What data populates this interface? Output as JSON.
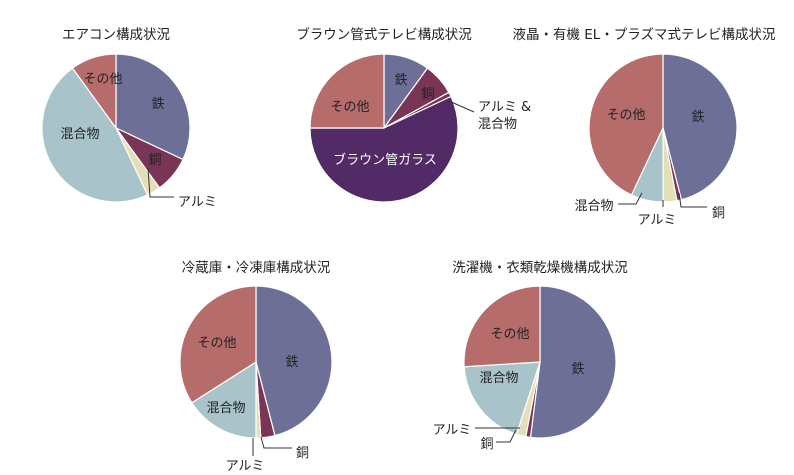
{
  "colors": {
    "iron": "#6e6f96",
    "copper": "#7a3456",
    "aluminum": "#e4dfb6",
    "mixed": "#a8c3c9",
    "other": "#b76c6c",
    "glass": "#512a66",
    "alumix": "#7a3456"
  },
  "chart_data": [
    {
      "type": "pie",
      "title": "エアコン構成状況",
      "slices": [
        {
          "key": "iron",
          "label": "鉄",
          "value": 32
        },
        {
          "key": "copper",
          "label": "銅",
          "value": 8
        },
        {
          "key": "aluminum",
          "label": "アルミ",
          "value": 3
        },
        {
          "key": "mixed",
          "label": "混合物",
          "value": 47
        },
        {
          "key": "other",
          "label": "その他",
          "value": 10
        }
      ]
    },
    {
      "type": "pie",
      "title": "ブラウン管式テレビ構成状況",
      "slices": [
        {
          "key": "iron",
          "label": "鉄",
          "value": 10
        },
        {
          "key": "copper",
          "label": "銅",
          "value": 7
        },
        {
          "key": "alumix",
          "label": "アルミ &\n混合物",
          "value": 1
        },
        {
          "key": "glass",
          "label": "ブラウン管ガラス",
          "value": 57
        },
        {
          "key": "other",
          "label": "その他",
          "value": 25
        }
      ]
    },
    {
      "type": "pie",
      "title": "液晶・有機 EL・プラズマ式テレビ構成状況",
      "slices": [
        {
          "key": "iron",
          "label": "鉄",
          "value": 46
        },
        {
          "key": "copper",
          "label": "銅",
          "value": 1
        },
        {
          "key": "aluminum",
          "label": "アルミ",
          "value": 3
        },
        {
          "key": "mixed",
          "label": "混合物",
          "value": 7
        },
        {
          "key": "other",
          "label": "その他",
          "value": 43
        }
      ]
    },
    {
      "type": "pie",
      "title": "冷蔵庫・冷凍庫構成状況",
      "slices": [
        {
          "key": "iron",
          "label": "鉄",
          "value": 46
        },
        {
          "key": "copper",
          "label": "銅",
          "value": 3
        },
        {
          "key": "aluminum",
          "label": "アルミ",
          "value": 1
        },
        {
          "key": "mixed",
          "label": "混合物",
          "value": 16
        },
        {
          "key": "other",
          "label": "その他",
          "value": 34
        }
      ]
    },
    {
      "type": "pie",
      "title": "洗濯機・衣類乾燥機構成状況",
      "slices": [
        {
          "key": "iron",
          "label": "鉄",
          "value": 52
        },
        {
          "key": "copper",
          "label": "銅",
          "value": 1
        },
        {
          "key": "aluminum",
          "label": "アルミ",
          "value": 2
        },
        {
          "key": "mixed",
          "label": "混合物",
          "value": 19
        },
        {
          "key": "other",
          "label": "その他",
          "value": 26
        }
      ]
    }
  ]
}
